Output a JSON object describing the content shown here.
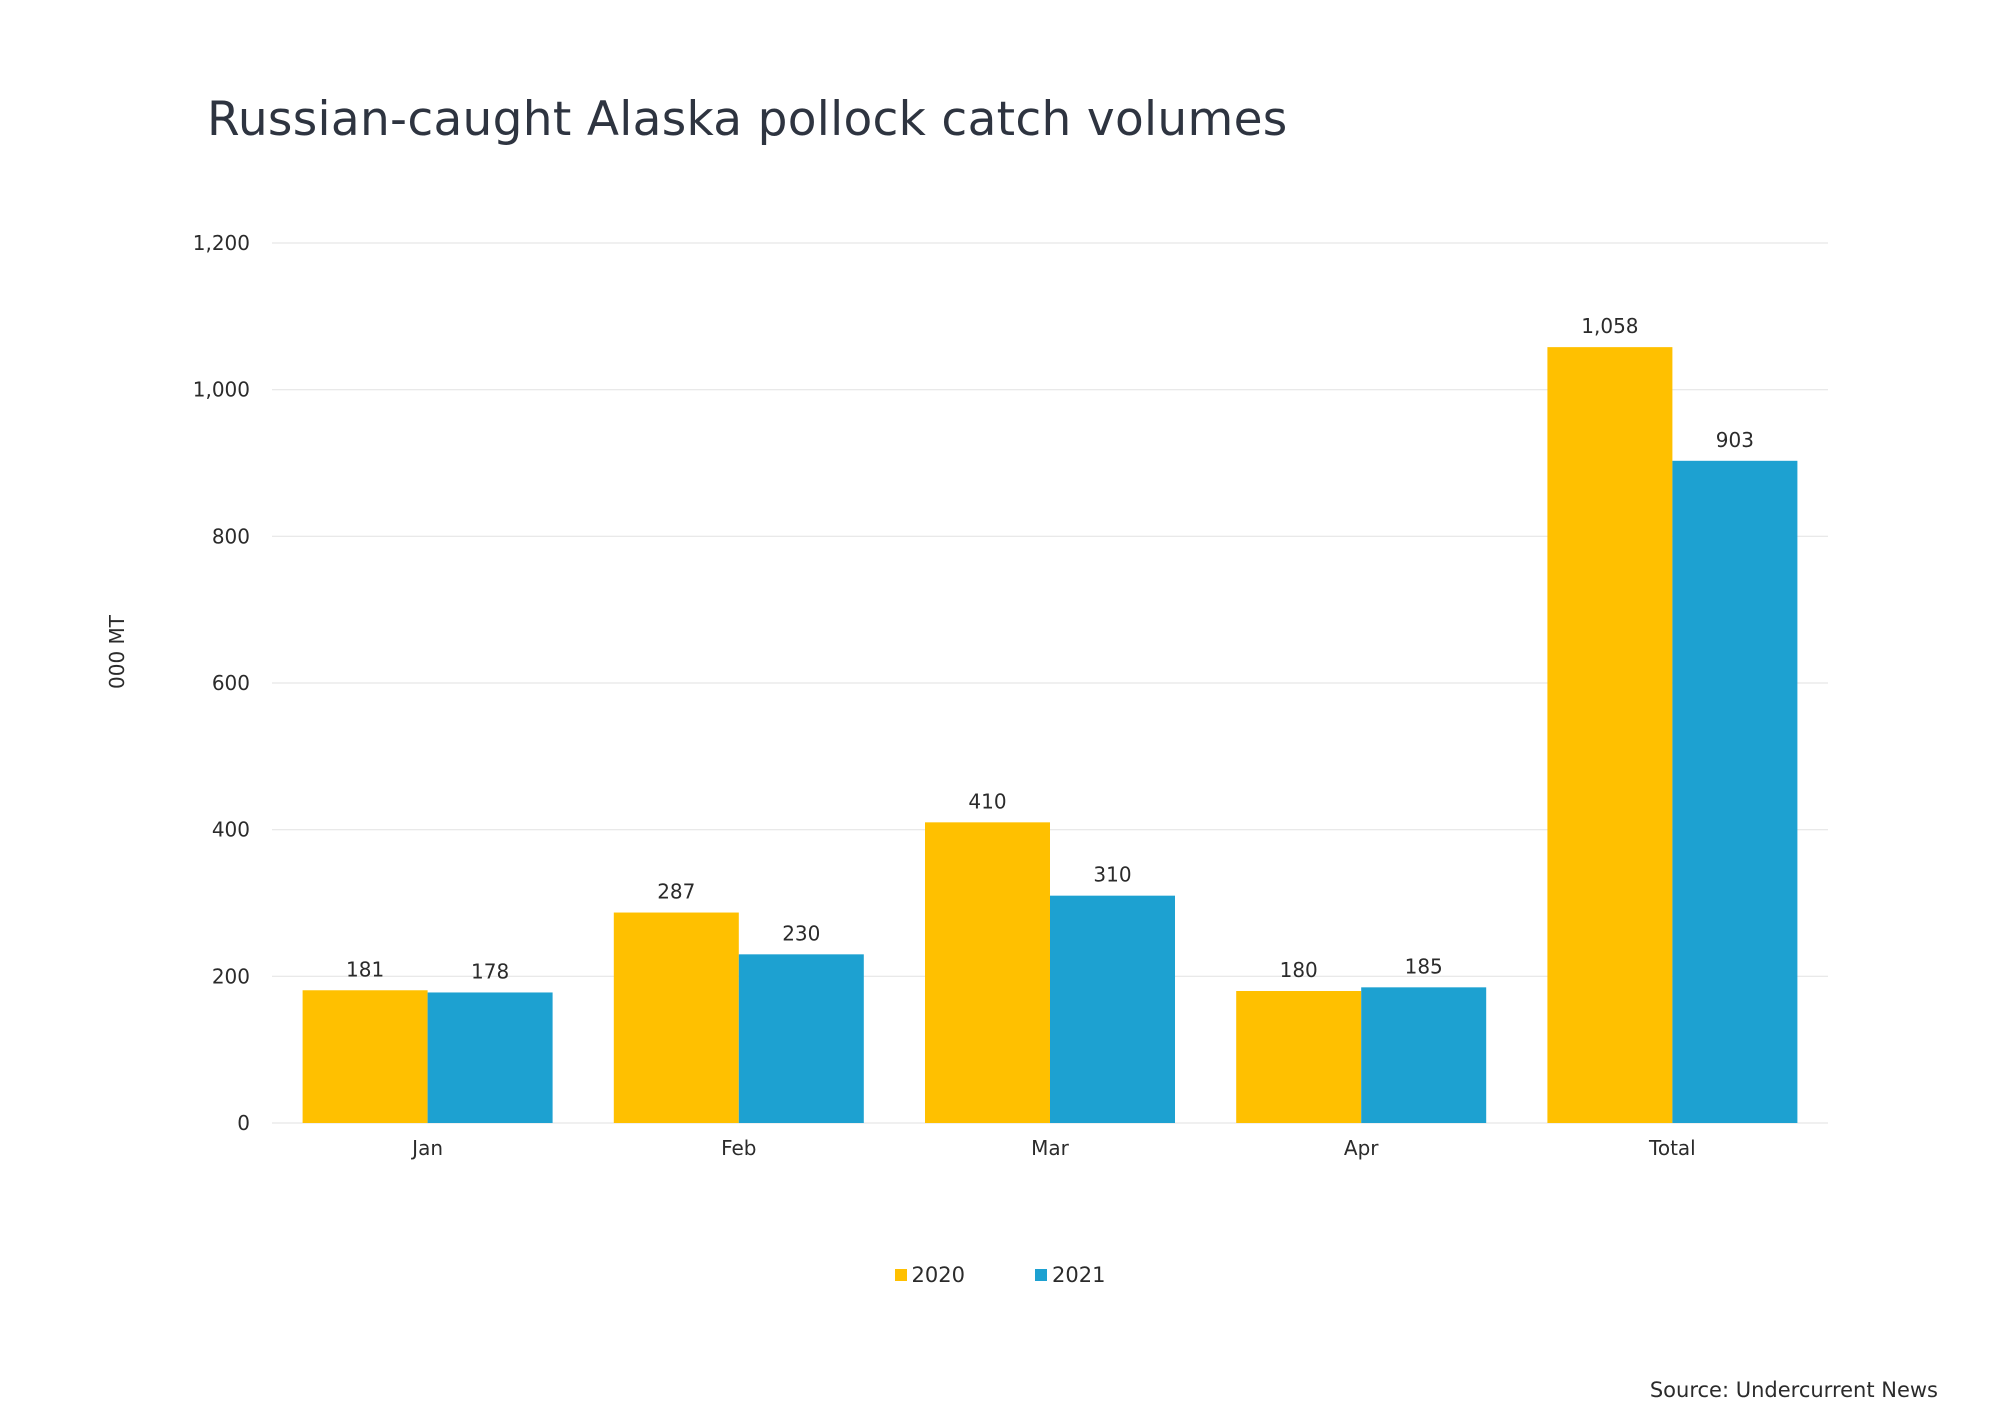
{
  "chart_data": {
    "type": "bar",
    "title": "Russian-caught Alaska pollock catch volumes",
    "ylabel": "000 MT",
    "xlabel": "",
    "categories": [
      "Jan",
      "Feb",
      "Mar",
      "Apr",
      "Total"
    ],
    "series": [
      {
        "name": "2020",
        "color": "#FFC000",
        "values": [
          181,
          287,
          410,
          180,
          1058
        ]
      },
      {
        "name": "2021",
        "color": "#1DA1D1",
        "values": [
          178,
          230,
          310,
          185,
          903
        ]
      }
    ],
    "value_labels": [
      [
        "181",
        "287",
        "410",
        "180",
        "1,058"
      ],
      [
        "178",
        "230",
        "310",
        "185",
        "903"
      ]
    ],
    "ylim": [
      0,
      1200
    ],
    "yticks": [
      0,
      200,
      400,
      600,
      800,
      1000,
      1200
    ],
    "ytick_labels": [
      "0",
      "200",
      "400",
      "600",
      "800",
      "1,000",
      "1,200"
    ],
    "grid": true,
    "legend_position": "bottom-center"
  },
  "source": "Source: Undercurrent News"
}
